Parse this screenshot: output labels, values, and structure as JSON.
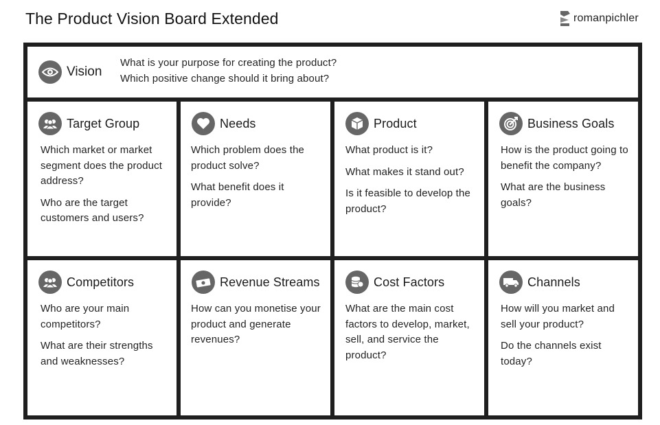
{
  "title": "The Product Vision Board Extended",
  "brand": {
    "name": "romanpichler"
  },
  "colors": {
    "border": "#1f1f1f",
    "icon_bg": "#666666",
    "text": "#222222"
  },
  "vision": {
    "heading": "Vision",
    "icon": "eye-icon",
    "questions": [
      "What is your purpose for creating the product?",
      "Which positive change should it bring about?"
    ]
  },
  "sections": [
    {
      "heading": "Target Group",
      "icon": "users-icon",
      "questions": [
        "Which market or market segment does the product address?",
        "Who are the target customers and users?"
      ]
    },
    {
      "heading": "Needs",
      "icon": "heart-icon",
      "questions": [
        "Which problem does the product solve?",
        "What benefit does it provide?"
      ]
    },
    {
      "heading": "Product",
      "icon": "box-icon",
      "questions": [
        "What product is it?",
        "What makes it stand out?",
        "Is it feasible to develop the product?"
      ]
    },
    {
      "heading": "Business Goals",
      "icon": "target-icon",
      "questions": [
        "How is the product going to benefit the company?",
        "What are the business goals?"
      ]
    },
    {
      "heading": "Competitors",
      "icon": "users-icon",
      "questions": [
        "Who are your main competitors?",
        "What are their strengths and weaknesses?"
      ]
    },
    {
      "heading": "Revenue Streams",
      "icon": "money-icon",
      "questions": [
        "How can you monetise your product and generate revenues?"
      ]
    },
    {
      "heading": "Cost Factors",
      "icon": "coins-icon",
      "questions": [
        "What are the main cost factors to develop, market, sell, and service the product?"
      ]
    },
    {
      "heading": "Channels",
      "icon": "truck-icon",
      "questions": [
        "How will you market and sell your product?",
        "Do the channels exist today?"
      ]
    }
  ]
}
